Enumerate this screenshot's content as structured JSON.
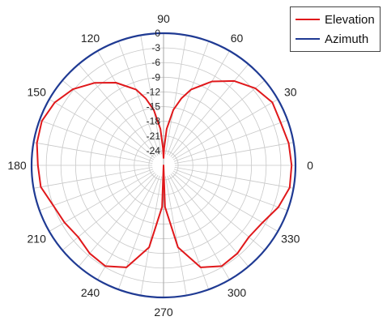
{
  "chart_data": {
    "type": "polar-line",
    "radial_axis": {
      "ticks": [
        "0",
        "-3",
        "-6",
        "-9",
        "-12",
        "-15",
        "-18",
        "-21",
        "-24"
      ],
      "values": [
        0,
        -3,
        -6,
        -9,
        -12,
        -15,
        -18,
        -21,
        -24
      ],
      "range": [
        -27,
        0
      ],
      "unit": ""
    },
    "angular_axis": {
      "ticks": [
        "0",
        "30",
        "60",
        "90",
        "120",
        "150",
        "180",
        "210",
        "240",
        "270",
        "300",
        "330"
      ],
      "values": [
        0,
        30,
        60,
        90,
        120,
        150,
        180,
        210,
        240,
        270,
        300,
        330
      ],
      "direction": "counterclockwise",
      "zero_at": "right"
    },
    "grid": true,
    "legend_position": "top-right",
    "series": [
      {
        "name": "Elevation",
        "color": "#e0181b",
        "theta": [
          0,
          10,
          20,
          30,
          40,
          50,
          60,
          70,
          75,
          80,
          85,
          88,
          90,
          92,
          95,
          100,
          105,
          110,
          120,
          130,
          140,
          150,
          160,
          170,
          180,
          190,
          200,
          210,
          220,
          230,
          240,
          250,
          260,
          268,
          270,
          272,
          280,
          290,
          300,
          310,
          320,
          330,
          340,
          350,
          360
        ],
        "r": [
          -0.8,
          -1.0,
          -1.5,
          -1.3,
          -2.5,
          -4.5,
          -7.2,
          -10.5,
          -12.8,
          -15.5,
          -19.5,
          -23.5,
          -25.5,
          -23.5,
          -19.5,
          -15.5,
          -12.8,
          -10.5,
          -7.5,
          -5.0,
          -2.8,
          -1.3,
          -0.5,
          -0.7,
          -1.3,
          -1.5,
          -3.0,
          -3.6,
          -4.2,
          -3.5,
          -3.2,
          -4.8,
          -10.0,
          -18.5,
          -27,
          -18.5,
          -10.0,
          -4.8,
          -3.2,
          -3.5,
          -4.2,
          -3.6,
          -2.0,
          -0.8,
          -0.8
        ]
      },
      {
        "name": "Azimuth",
        "color": "#1f3a93",
        "theta": [
          0,
          30,
          60,
          90,
          120,
          150,
          180,
          210,
          240,
          270,
          300,
          330,
          360
        ],
        "r": [
          0,
          0,
          0,
          0,
          0,
          0,
          0,
          0,
          0,
          0,
          0,
          0,
          0
        ]
      }
    ]
  }
}
